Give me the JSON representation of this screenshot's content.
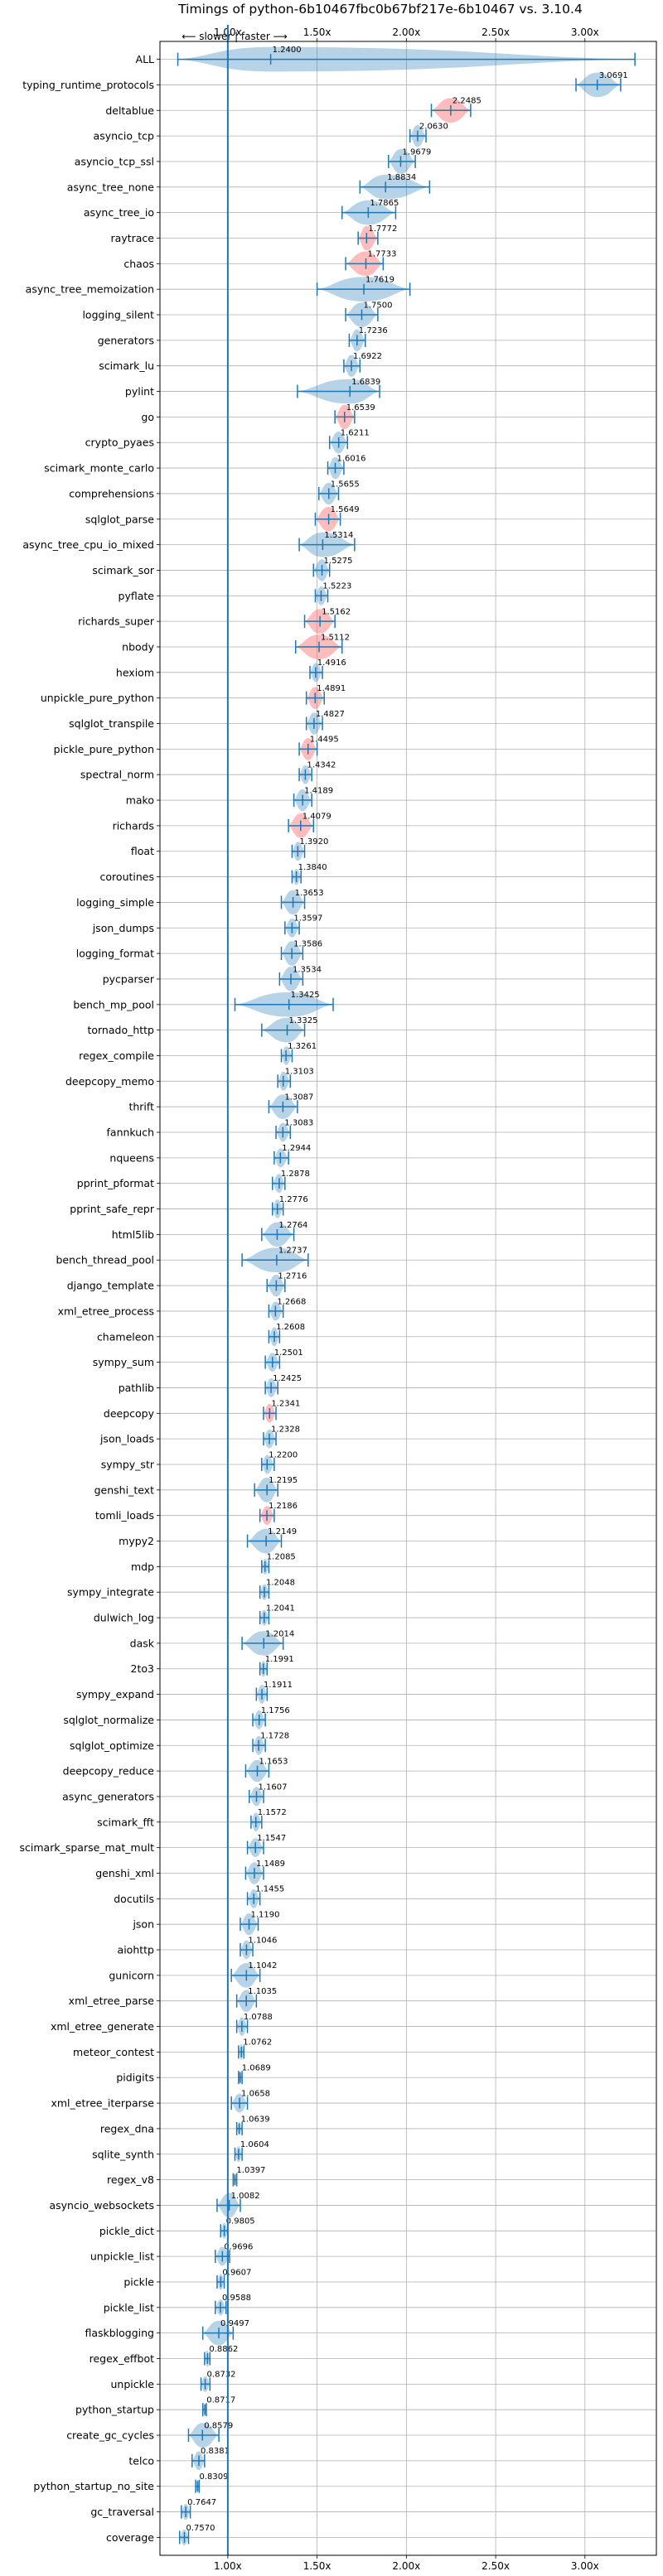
{
  "chart_data": {
    "type": "violin",
    "title": "Timings of python-6b10467fbc0b67bf217e-6b10467 vs. 3.10.4",
    "xlabel": "",
    "ylabel": "",
    "xlim": [
      0.62,
      3.4
    ],
    "x_ticks": [
      1.0,
      1.5,
      2.0,
      2.5,
      3.0
    ],
    "x_tick_labels": [
      "1.00x",
      "1.50x",
      "2.00x",
      "2.50x",
      "3.00x"
    ],
    "direction_label": "⟵ slower  |  faster ⟶",
    "grid": true,
    "colors": {
      "normal": "#1f77b4",
      "highlight": "#ff6b6b"
    },
    "series": [
      {
        "name": "ALL",
        "value": 1.24,
        "min": 0.72,
        "max": 3.28,
        "spread": 0.95,
        "highlight": false
      },
      {
        "name": "typing_runtime_protocols",
        "value": 3.0691,
        "min": 2.95,
        "max": 3.2,
        "spread": 0.1,
        "highlight": false
      },
      {
        "name": "deltablue",
        "value": 2.2485,
        "min": 2.14,
        "max": 2.36,
        "spread": 0.09,
        "highlight": true
      },
      {
        "name": "asyncio_tcp",
        "value": 2.063,
        "min": 2.02,
        "max": 2.11,
        "spread": 0.04,
        "highlight": false
      },
      {
        "name": "asyncio_tcp_ssl",
        "value": 1.9679,
        "min": 1.9,
        "max": 2.05,
        "spread": 0.06,
        "highlight": false
      },
      {
        "name": "async_tree_none",
        "value": 1.8834,
        "min": 1.74,
        "max": 2.13,
        "spread": 0.14,
        "highlight": false
      },
      {
        "name": "async_tree_io",
        "value": 1.7865,
        "min": 1.64,
        "max": 1.94,
        "spread": 0.13,
        "highlight": false
      },
      {
        "name": "raytrace",
        "value": 1.7772,
        "min": 1.73,
        "max": 1.84,
        "spread": 0.05,
        "highlight": true
      },
      {
        "name": "chaos",
        "value": 1.7733,
        "min": 1.66,
        "max": 1.87,
        "spread": 0.07,
        "highlight": true
      },
      {
        "name": "async_tree_memoization",
        "value": 1.7619,
        "min": 1.5,
        "max": 2.02,
        "spread": 0.14,
        "highlight": false
      },
      {
        "name": "logging_silent",
        "value": 1.75,
        "min": 1.66,
        "max": 1.84,
        "spread": 0.07,
        "highlight": false
      },
      {
        "name": "generators",
        "value": 1.7236,
        "min": 1.68,
        "max": 1.77,
        "spread": 0.04,
        "highlight": false
      },
      {
        "name": "scimark_lu",
        "value": 1.6922,
        "min": 1.65,
        "max": 1.74,
        "spread": 0.04,
        "highlight": false
      },
      {
        "name": "pylint",
        "value": 1.6839,
        "min": 1.39,
        "max": 1.85,
        "spread": 0.1,
        "highlight": false
      },
      {
        "name": "go",
        "value": 1.6539,
        "min": 1.6,
        "max": 1.71,
        "spread": 0.05,
        "highlight": true
      },
      {
        "name": "crypto_pyaes",
        "value": 1.6211,
        "min": 1.57,
        "max": 1.67,
        "spread": 0.04,
        "highlight": false
      },
      {
        "name": "scimark_monte_carlo",
        "value": 1.6016,
        "min": 1.56,
        "max": 1.65,
        "spread": 0.04,
        "highlight": false
      },
      {
        "name": "comprehensions",
        "value": 1.5655,
        "min": 1.51,
        "max": 1.62,
        "spread": 0.04,
        "highlight": false
      },
      {
        "name": "sqlglot_parse",
        "value": 1.5649,
        "min": 1.49,
        "max": 1.63,
        "spread": 0.06,
        "highlight": true
      },
      {
        "name": "async_tree_cpu_io_mixed",
        "value": 1.5314,
        "min": 1.4,
        "max": 1.71,
        "spread": 0.12,
        "highlight": false
      },
      {
        "name": "scimark_sor",
        "value": 1.5275,
        "min": 1.48,
        "max": 1.57,
        "spread": 0.04,
        "highlight": false
      },
      {
        "name": "pyflate",
        "value": 1.5223,
        "min": 1.49,
        "max": 1.56,
        "spread": 0.03,
        "highlight": false
      },
      {
        "name": "richards_super",
        "value": 1.5162,
        "min": 1.43,
        "max": 1.6,
        "spread": 0.07,
        "highlight": true
      },
      {
        "name": "nbody",
        "value": 1.5112,
        "min": 1.38,
        "max": 1.64,
        "spread": 0.06,
        "highlight": true
      },
      {
        "name": "hexiom",
        "value": 1.4916,
        "min": 1.46,
        "max": 1.53,
        "spread": 0.03,
        "highlight": false
      },
      {
        "name": "unpickle_pure_python",
        "value": 1.4891,
        "min": 1.44,
        "max": 1.54,
        "spread": 0.04,
        "highlight": true
      },
      {
        "name": "sqlglot_transpile",
        "value": 1.4827,
        "min": 1.44,
        "max": 1.53,
        "spread": 0.04,
        "highlight": false
      },
      {
        "name": "pickle_pure_python",
        "value": 1.4495,
        "min": 1.4,
        "max": 1.5,
        "spread": 0.04,
        "highlight": true
      },
      {
        "name": "spectral_norm",
        "value": 1.4342,
        "min": 1.4,
        "max": 1.47,
        "spread": 0.03,
        "highlight": false
      },
      {
        "name": "mako",
        "value": 1.4189,
        "min": 1.37,
        "max": 1.47,
        "spread": 0.04,
        "highlight": false
      },
      {
        "name": "richards",
        "value": 1.4079,
        "min": 1.34,
        "max": 1.48,
        "spread": 0.06,
        "highlight": true
      },
      {
        "name": "float",
        "value": 1.392,
        "min": 1.36,
        "max": 1.43,
        "spread": 0.03,
        "highlight": false
      },
      {
        "name": "coroutines",
        "value": 1.384,
        "min": 1.36,
        "max": 1.41,
        "spread": 0.02,
        "highlight": false
      },
      {
        "name": "logging_simple",
        "value": 1.3653,
        "min": 1.3,
        "max": 1.43,
        "spread": 0.05,
        "highlight": false
      },
      {
        "name": "json_dumps",
        "value": 1.3597,
        "min": 1.32,
        "max": 1.4,
        "spread": 0.03,
        "highlight": false
      },
      {
        "name": "logging_format",
        "value": 1.3586,
        "min": 1.3,
        "max": 1.42,
        "spread": 0.05,
        "highlight": false
      },
      {
        "name": "pycparser",
        "value": 1.3534,
        "min": 1.29,
        "max": 1.42,
        "spread": 0.05,
        "highlight": false
      },
      {
        "name": "bench_mp_pool",
        "value": 1.3425,
        "min": 1.04,
        "max": 1.59,
        "spread": 0.2,
        "highlight": false
      },
      {
        "name": "tornado_http",
        "value": 1.3325,
        "min": 1.19,
        "max": 1.43,
        "spread": 0.08,
        "highlight": false
      },
      {
        "name": "regex_compile",
        "value": 1.3261,
        "min": 1.3,
        "max": 1.36,
        "spread": 0.03,
        "highlight": false
      },
      {
        "name": "deepcopy_memo",
        "value": 1.3103,
        "min": 1.28,
        "max": 1.35,
        "spread": 0.03,
        "highlight": false
      },
      {
        "name": "thrift",
        "value": 1.3087,
        "min": 1.23,
        "max": 1.39,
        "spread": 0.06,
        "highlight": false
      },
      {
        "name": "fannkuch",
        "value": 1.3083,
        "min": 1.27,
        "max": 1.35,
        "spread": 0.03,
        "highlight": false
      },
      {
        "name": "nqueens",
        "value": 1.2944,
        "min": 1.26,
        "max": 1.34,
        "spread": 0.03,
        "highlight": false
      },
      {
        "name": "pprint_pformat",
        "value": 1.2878,
        "min": 1.25,
        "max": 1.32,
        "spread": 0.03,
        "highlight": false
      },
      {
        "name": "pprint_safe_repr",
        "value": 1.2776,
        "min": 1.25,
        "max": 1.31,
        "spread": 0.03,
        "highlight": false
      },
      {
        "name": "html5lib",
        "value": 1.2764,
        "min": 1.19,
        "max": 1.37,
        "spread": 0.06,
        "highlight": false
      },
      {
        "name": "bench_thread_pool",
        "value": 1.2737,
        "min": 1.08,
        "max": 1.45,
        "spread": 0.1,
        "highlight": false
      },
      {
        "name": "django_template",
        "value": 1.2716,
        "min": 1.22,
        "max": 1.32,
        "spread": 0.04,
        "highlight": false
      },
      {
        "name": "xml_etree_process",
        "value": 1.2668,
        "min": 1.23,
        "max": 1.31,
        "spread": 0.03,
        "highlight": false
      },
      {
        "name": "chameleon",
        "value": 1.2608,
        "min": 1.23,
        "max": 1.29,
        "spread": 0.03,
        "highlight": false
      },
      {
        "name": "sympy_sum",
        "value": 1.2501,
        "min": 1.21,
        "max": 1.29,
        "spread": 0.03,
        "highlight": false
      },
      {
        "name": "pathlib",
        "value": 1.2425,
        "min": 1.21,
        "max": 1.28,
        "spread": 0.03,
        "highlight": false
      },
      {
        "name": "deepcopy",
        "value": 1.2341,
        "min": 1.2,
        "max": 1.27,
        "spread": 0.03,
        "highlight": true
      },
      {
        "name": "json_loads",
        "value": 1.2328,
        "min": 1.2,
        "max": 1.27,
        "spread": 0.03,
        "highlight": false
      },
      {
        "name": "sympy_str",
        "value": 1.22,
        "min": 1.19,
        "max": 1.26,
        "spread": 0.03,
        "highlight": false
      },
      {
        "name": "genshi_text",
        "value": 1.2195,
        "min": 1.15,
        "max": 1.28,
        "spread": 0.05,
        "highlight": false
      },
      {
        "name": "tomli_loads",
        "value": 1.2186,
        "min": 1.18,
        "max": 1.26,
        "spread": 0.03,
        "highlight": true
      },
      {
        "name": "mypy2",
        "value": 1.2149,
        "min": 1.11,
        "max": 1.3,
        "spread": 0.05,
        "highlight": false
      },
      {
        "name": "mdp",
        "value": 1.2085,
        "min": 1.19,
        "max": 1.23,
        "spread": 0.02,
        "highlight": false
      },
      {
        "name": "sympy_integrate",
        "value": 1.2048,
        "min": 1.18,
        "max": 1.23,
        "spread": 0.02,
        "highlight": false
      },
      {
        "name": "dulwich_log",
        "value": 1.2041,
        "min": 1.18,
        "max": 1.23,
        "spread": 0.02,
        "highlight": false
      },
      {
        "name": "dask",
        "value": 1.2014,
        "min": 1.08,
        "max": 1.31,
        "spread": 0.07,
        "highlight": false
      },
      {
        "name": "2to3",
        "value": 1.1991,
        "min": 1.18,
        "max": 1.22,
        "spread": 0.02,
        "highlight": false
      },
      {
        "name": "sympy_expand",
        "value": 1.1911,
        "min": 1.16,
        "max": 1.22,
        "spread": 0.03,
        "highlight": false
      },
      {
        "name": "sqlglot_normalize",
        "value": 1.1756,
        "min": 1.14,
        "max": 1.21,
        "spread": 0.03,
        "highlight": false
      },
      {
        "name": "sqlglot_optimize",
        "value": 1.1728,
        "min": 1.14,
        "max": 1.21,
        "spread": 0.03,
        "highlight": false
      },
      {
        "name": "deepcopy_reduce",
        "value": 1.1653,
        "min": 1.1,
        "max": 1.23,
        "spread": 0.04,
        "highlight": false
      },
      {
        "name": "async_generators",
        "value": 1.1607,
        "min": 1.12,
        "max": 1.2,
        "spread": 0.03,
        "highlight": false
      },
      {
        "name": "scimark_fft",
        "value": 1.1572,
        "min": 1.13,
        "max": 1.19,
        "spread": 0.03,
        "highlight": false
      },
      {
        "name": "scimark_sparse_mat_mult",
        "value": 1.1547,
        "min": 1.11,
        "max": 1.2,
        "spread": 0.03,
        "highlight": false
      },
      {
        "name": "genshi_xml",
        "value": 1.1489,
        "min": 1.1,
        "max": 1.2,
        "spread": 0.04,
        "highlight": false
      },
      {
        "name": "docutils",
        "value": 1.1455,
        "min": 1.11,
        "max": 1.18,
        "spread": 0.03,
        "highlight": false
      },
      {
        "name": "json",
        "value": 1.119,
        "min": 1.07,
        "max": 1.17,
        "spread": 0.04,
        "highlight": false
      },
      {
        "name": "aiohttp",
        "value": 1.1046,
        "min": 1.07,
        "max": 1.14,
        "spread": 0.03,
        "highlight": false
      },
      {
        "name": "gunicorn",
        "value": 1.1042,
        "min": 1.02,
        "max": 1.18,
        "spread": 0.05,
        "highlight": false
      },
      {
        "name": "xml_etree_parse",
        "value": 1.1035,
        "min": 1.05,
        "max": 1.16,
        "spread": 0.04,
        "highlight": false
      },
      {
        "name": "xml_etree_generate",
        "value": 1.0788,
        "min": 1.05,
        "max": 1.11,
        "spread": 0.03,
        "highlight": false
      },
      {
        "name": "meteor_contest",
        "value": 1.0762,
        "min": 1.06,
        "max": 1.09,
        "spread": 0.02,
        "highlight": false
      },
      {
        "name": "pidigits",
        "value": 1.0689,
        "min": 1.06,
        "max": 1.08,
        "spread": 0.01,
        "highlight": false
      },
      {
        "name": "xml_etree_iterparse",
        "value": 1.0658,
        "min": 1.02,
        "max": 1.11,
        "spread": 0.03,
        "highlight": false
      },
      {
        "name": "regex_dna",
        "value": 1.0639,
        "min": 1.05,
        "max": 1.08,
        "spread": 0.01,
        "highlight": false
      },
      {
        "name": "sqlite_synth",
        "value": 1.0604,
        "min": 1.04,
        "max": 1.08,
        "spread": 0.02,
        "highlight": false
      },
      {
        "name": "regex_v8",
        "value": 1.0397,
        "min": 1.03,
        "max": 1.05,
        "spread": 0.01,
        "highlight": false
      },
      {
        "name": "asyncio_websockets",
        "value": 1.0082,
        "min": 0.94,
        "max": 1.07,
        "spread": 0.05,
        "highlight": false
      },
      {
        "name": "pickle_dict",
        "value": 0.9805,
        "min": 0.96,
        "max": 1.0,
        "spread": 0.02,
        "highlight": false
      },
      {
        "name": "unpickle_list",
        "value": 0.9696,
        "min": 0.93,
        "max": 1.01,
        "spread": 0.03,
        "highlight": false
      },
      {
        "name": "pickle",
        "value": 0.9607,
        "min": 0.94,
        "max": 0.98,
        "spread": 0.02,
        "highlight": false
      },
      {
        "name": "pickle_list",
        "value": 0.9588,
        "min": 0.93,
        "max": 0.99,
        "spread": 0.02,
        "highlight": false
      },
      {
        "name": "flaskblogging",
        "value": 0.9497,
        "min": 0.86,
        "max": 1.03,
        "spread": 0.05,
        "highlight": false
      },
      {
        "name": "regex_effbot",
        "value": 0.8862,
        "min": 0.87,
        "max": 0.9,
        "spread": 0.02,
        "highlight": false
      },
      {
        "name": "unpickle",
        "value": 0.8732,
        "min": 0.85,
        "max": 0.9,
        "spread": 0.02,
        "highlight": false
      },
      {
        "name": "python_startup",
        "value": 0.8717,
        "min": 0.86,
        "max": 0.88,
        "spread": 0.01,
        "highlight": false
      },
      {
        "name": "create_gc_cycles",
        "value": 0.8579,
        "min": 0.78,
        "max": 0.95,
        "spread": 0.06,
        "highlight": false
      },
      {
        "name": "telco",
        "value": 0.8381,
        "min": 0.8,
        "max": 0.87,
        "spread": 0.03,
        "highlight": false
      },
      {
        "name": "python_startup_no_site",
        "value": 0.8309,
        "min": 0.82,
        "max": 0.84,
        "spread": 0.01,
        "highlight": false
      },
      {
        "name": "gc_traversal",
        "value": 0.7647,
        "min": 0.74,
        "max": 0.79,
        "spread": 0.02,
        "highlight": false
      },
      {
        "name": "coverage",
        "value": 0.757,
        "min": 0.73,
        "max": 0.78,
        "spread": 0.02,
        "highlight": false
      }
    ]
  }
}
